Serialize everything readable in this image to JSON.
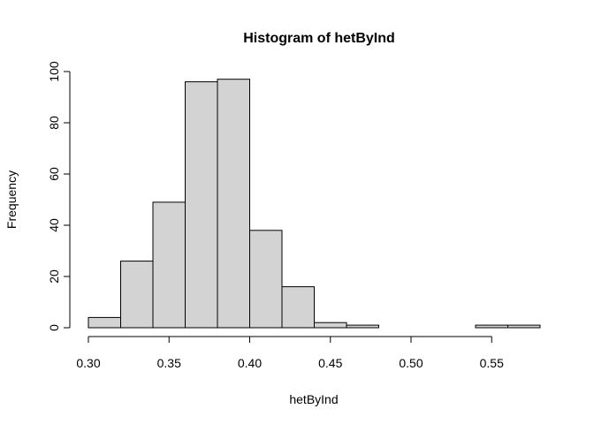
{
  "chart_data": {
    "type": "bar",
    "title": "Histogram of hetByInd",
    "xlabel": "hetByInd",
    "ylabel": "Frequency",
    "bin_edges": [
      0.3,
      0.32,
      0.34,
      0.36,
      0.38,
      0.4,
      0.42,
      0.44,
      0.46,
      0.48,
      0.5,
      0.52,
      0.54,
      0.56,
      0.58
    ],
    "values": [
      4,
      26,
      49,
      96,
      97,
      38,
      16,
      2,
      1,
      0,
      0,
      0,
      1,
      1
    ],
    "xlim": [
      0.3,
      0.58
    ],
    "ylim": [
      0,
      100
    ],
    "x_ticks": [
      0.3,
      0.35,
      0.4,
      0.45,
      0.5,
      0.55
    ],
    "x_tick_labels": [
      "0.30",
      "0.35",
      "0.40",
      "0.45",
      "0.50",
      "0.55"
    ],
    "y_ticks": [
      0,
      20,
      40,
      60,
      80,
      100
    ],
    "y_tick_labels": [
      "0",
      "20",
      "40",
      "60",
      "80",
      "100"
    ],
    "bar_color": "#d3d3d3",
    "edge_color": "#000000",
    "grid": false,
    "legend": "none"
  }
}
